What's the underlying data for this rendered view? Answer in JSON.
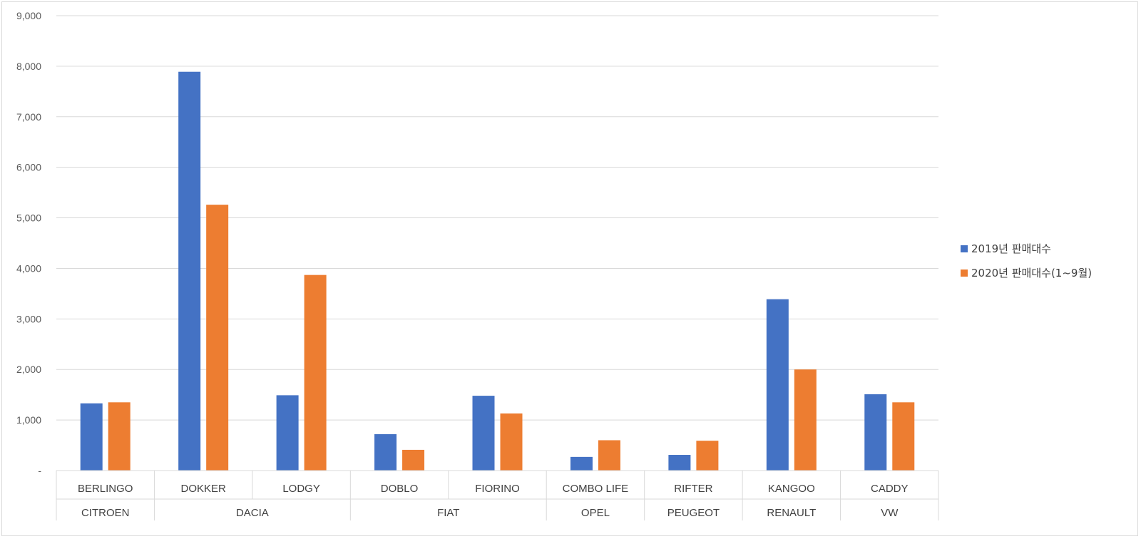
{
  "chart_data": {
    "type": "bar",
    "title": "",
    "xlabel": "",
    "ylabel": "",
    "ylim": [
      0,
      9000
    ],
    "yticks": [
      "-",
      "1,000",
      "2,000",
      "3,000",
      "4,000",
      "5,000",
      "6,000",
      "7,000",
      "8,000",
      "9,000"
    ],
    "grid": true,
    "legend_position": "right",
    "categories": [
      "BERLINGO",
      "DOKKER",
      "LODGY",
      "DOBLO",
      "FIORINO",
      "COMBO LIFE",
      "RIFTER",
      "KANGOO",
      "CADDY"
    ],
    "groups": [
      {
        "name": "CITROEN",
        "span": 1
      },
      {
        "name": "DACIA",
        "span": 2
      },
      {
        "name": "FIAT",
        "span": 2
      },
      {
        "name": "OPEL",
        "span": 1
      },
      {
        "name": "PEUGEOT",
        "span": 1
      },
      {
        "name": "RENAULT",
        "span": 1
      },
      {
        "name": "VW",
        "span": 1
      }
    ],
    "series": [
      {
        "name": "2019년 판매대수",
        "color": "#4472c4",
        "values": [
          1330,
          7890,
          1490,
          720,
          1480,
          270,
          310,
          3390,
          1510
        ]
      },
      {
        "name": "2020년 판매대수(1~9월)",
        "color": "#ed7d31",
        "values": [
          1350,
          5260,
          3870,
          410,
          1130,
          600,
          590,
          2000,
          1350
        ]
      }
    ]
  }
}
